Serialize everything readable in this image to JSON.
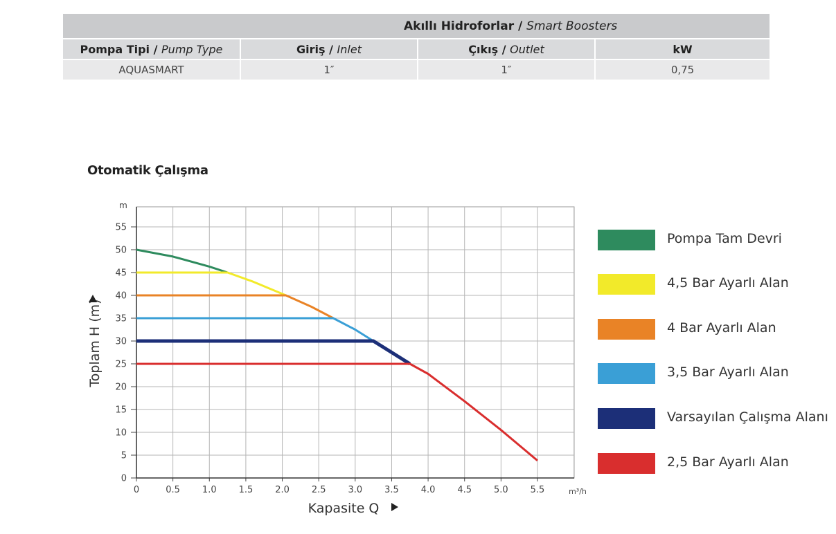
{
  "table": {
    "title_tr": "Akıllı Hidroforlar /",
    "title_en": "Smart Boosters",
    "headers": [
      {
        "tr": "Pompa Tipi /",
        "en": "Pump Type"
      },
      {
        "tr": "Giriş /",
        "en": "Inlet"
      },
      {
        "tr": "Çıkış /",
        "en": "Outlet"
      },
      {
        "tr": "kW",
        "en": ""
      }
    ],
    "row": [
      "AQUASMART",
      "1″",
      "1″",
      "0,75"
    ]
  },
  "chart_title": "Otomatik Çalışma",
  "chart_data": {
    "type": "line",
    "xlabel": "Kapasite Q",
    "x_unit": "m³/h",
    "ylabel": "Toplam H (m)",
    "y_unit": "m",
    "xlim": [
      0,
      5.5
    ],
    "ylim": [
      0,
      55
    ],
    "xticks": [
      0,
      0.5,
      1.0,
      1.5,
      2.0,
      2.5,
      3.0,
      3.5,
      4.0,
      4.5,
      5.0,
      5.5
    ],
    "xtick_labels": [
      "0",
      "0.5",
      "1.0",
      "1.5",
      "2.0",
      "2.5",
      "3.0",
      "3.5",
      "4.0",
      "4.5",
      "5.0",
      "5.5"
    ],
    "yticks": [
      0,
      5,
      10,
      15,
      20,
      25,
      30,
      35,
      40,
      45,
      50,
      55
    ],
    "grid": true,
    "legend_position": "right",
    "series": [
      {
        "name": "Pompa Tam Devri",
        "color": "#2e8b5e",
        "points": [
          [
            0,
            50
          ],
          [
            0.5,
            48.5
          ],
          [
            1.0,
            46.3
          ],
          [
            1.25,
            45
          ]
        ]
      },
      {
        "name": "4,5 Bar Ayarlı Alan",
        "color": "#f2ea2a",
        "points": [
          [
            0,
            45
          ],
          [
            1.25,
            45
          ],
          [
            1.6,
            43
          ],
          [
            2.05,
            40
          ]
        ]
      },
      {
        "name": "4 Bar Ayarlı Alan",
        "color": "#e98326",
        "points": [
          [
            0,
            40
          ],
          [
            2.05,
            40
          ],
          [
            2.4,
            37.5
          ],
          [
            2.7,
            35
          ]
        ]
      },
      {
        "name": "3,5 Bar Ayarlı Alan",
        "color": "#3a9fd6",
        "points": [
          [
            0,
            35
          ],
          [
            2.7,
            35
          ],
          [
            3.0,
            32.5
          ],
          [
            3.25,
            30
          ]
        ]
      },
      {
        "name": "Varsayılan Çalışma Alanı",
        "color": "#1c2f78",
        "points": [
          [
            0,
            30
          ],
          [
            3.25,
            30
          ],
          [
            3.5,
            27.5
          ],
          [
            3.75,
            25
          ]
        ]
      },
      {
        "name": "2,5 Bar Ayarlı Alan",
        "color": "#d92e2e",
        "points": [
          [
            0,
            25
          ],
          [
            3.75,
            25
          ],
          [
            4.0,
            22.8
          ],
          [
            4.5,
            16.8
          ],
          [
            5.0,
            10.5
          ],
          [
            5.5,
            3.8
          ]
        ]
      }
    ]
  }
}
